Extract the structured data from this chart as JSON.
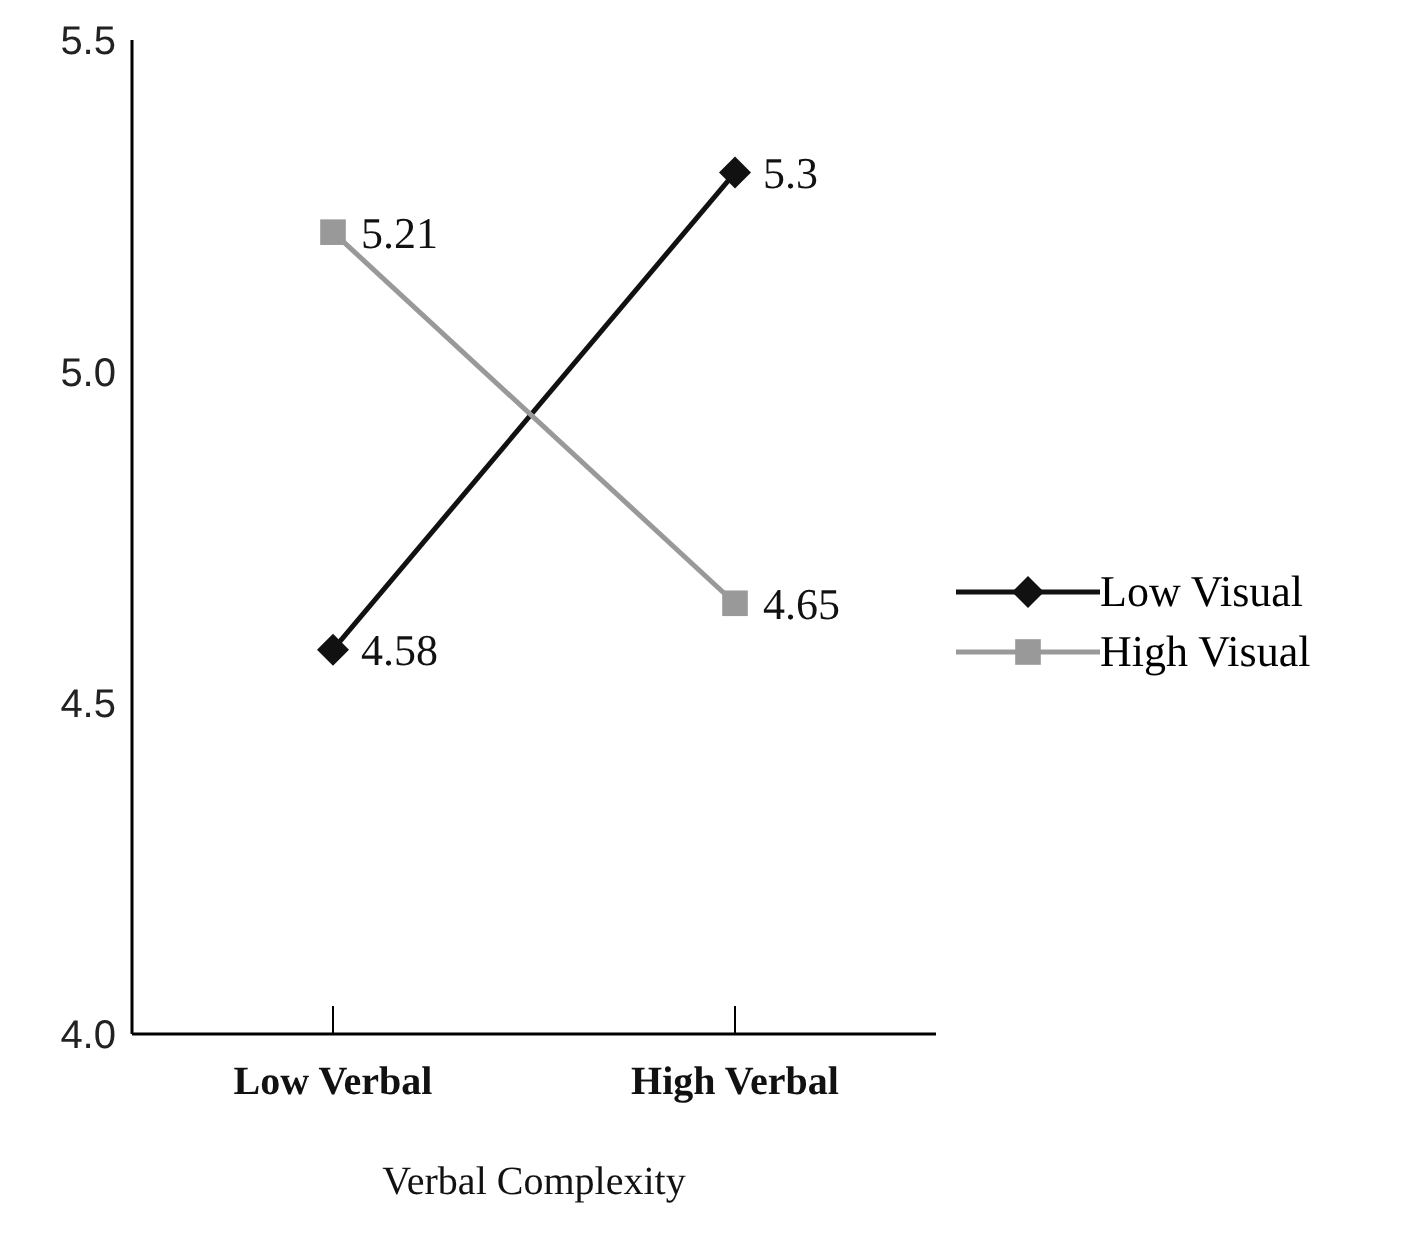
{
  "chart_data": {
    "type": "line",
    "xlabel": "Verbal Complexity",
    "categories": [
      "Low Verbal",
      "High Verbal"
    ],
    "series": [
      {
        "name": "Low Visual",
        "color": "#111111",
        "values": [
          4.58,
          5.3
        ],
        "marker": "diamond"
      },
      {
        "name": "High Visual",
        "color": "#999999",
        "values": [
          5.21,
          4.65
        ],
        "marker": "square"
      }
    ],
    "ylim": [
      4,
      5.5
    ],
    "yticks": [
      {
        "value": 4,
        "label": "4.0"
      },
      {
        "value": 4.5,
        "label": "4.5"
      },
      {
        "value": 5,
        "label": "5.0"
      },
      {
        "value": 5.5,
        "label": "5.5"
      }
    ],
    "data_labels": true,
    "legend": "right",
    "grid": false
  }
}
